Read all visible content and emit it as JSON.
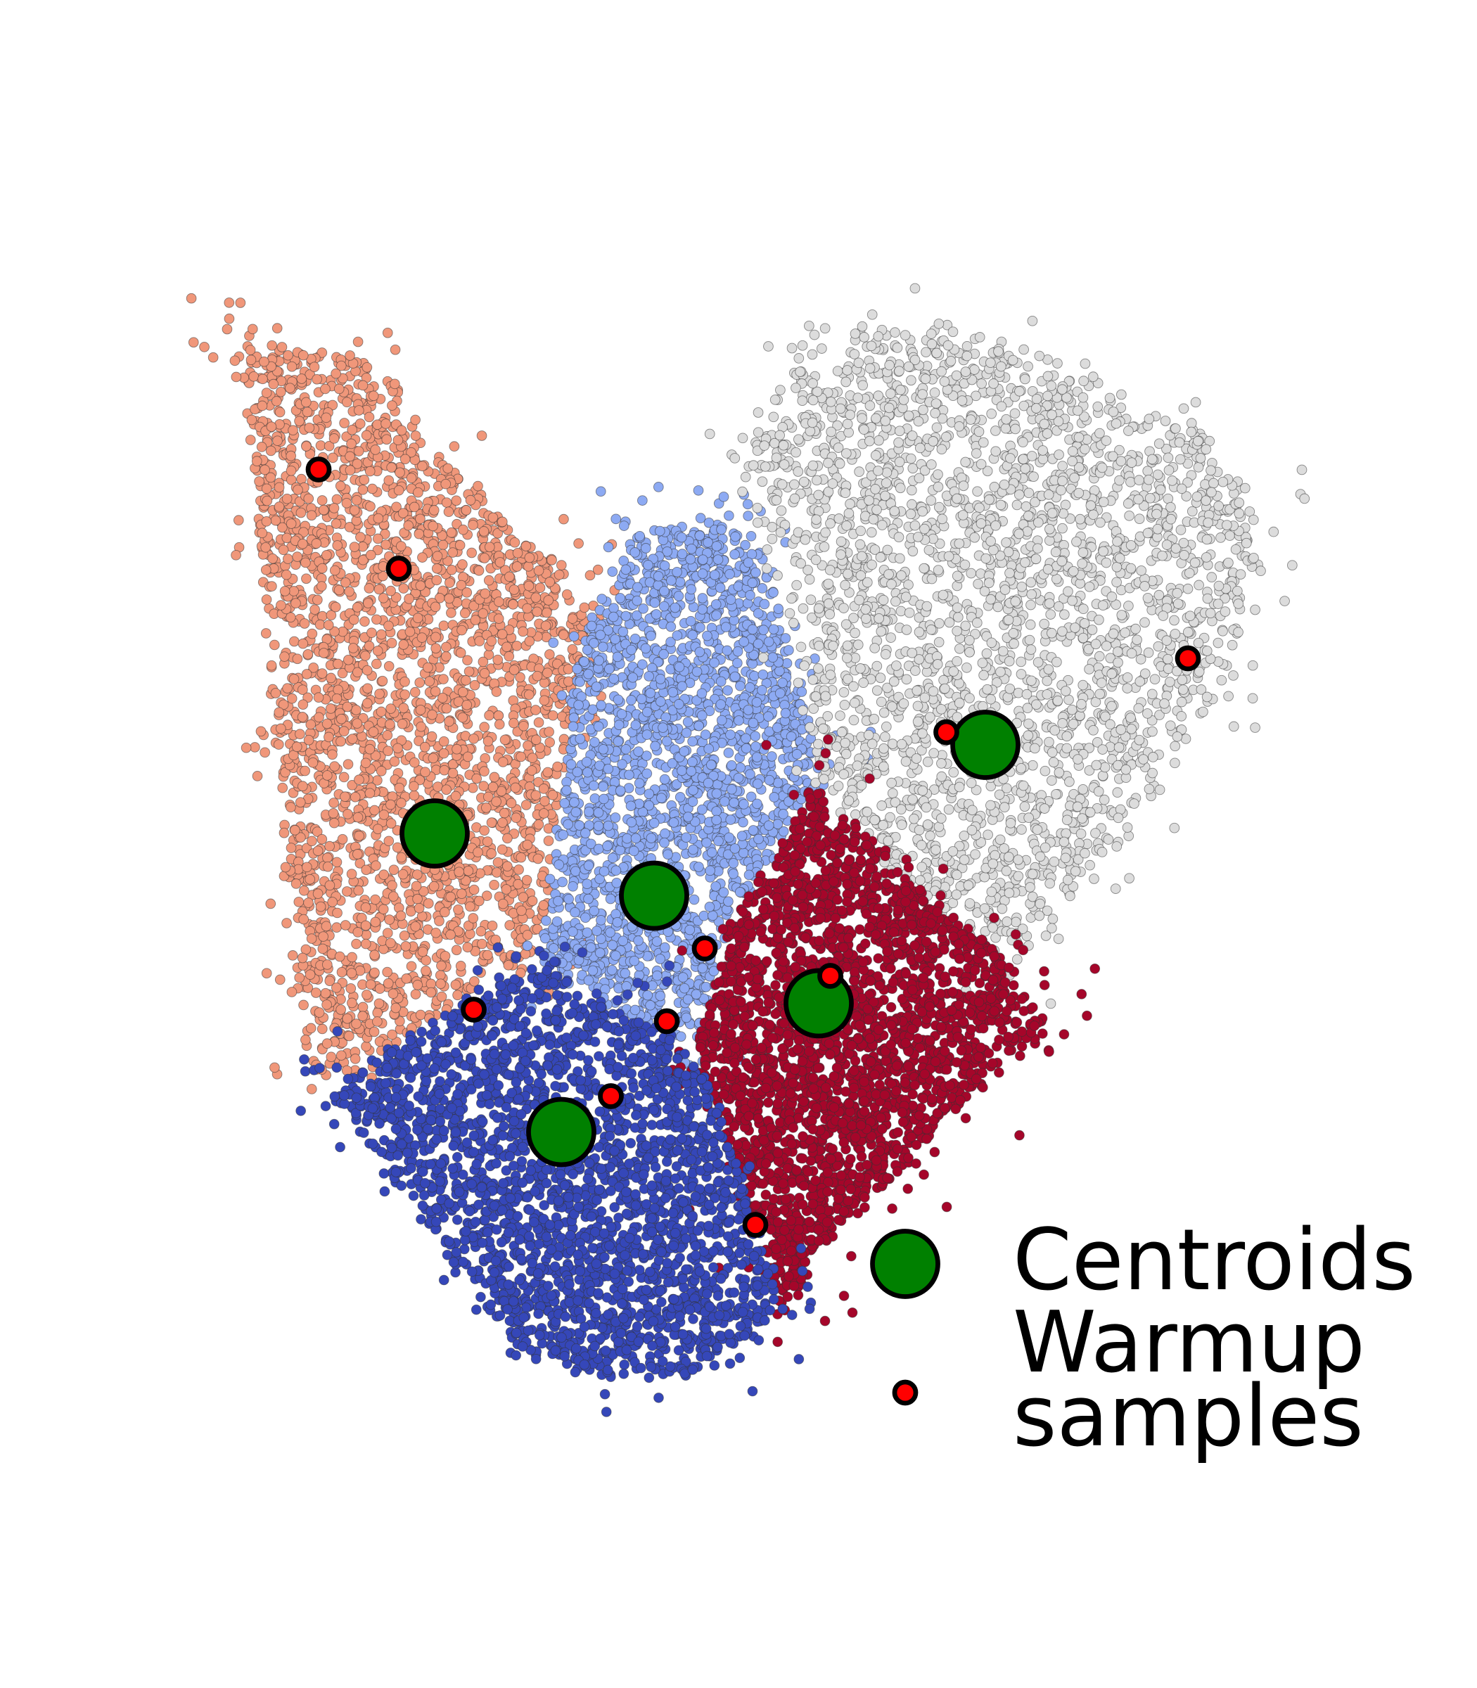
{
  "chart_data": {
    "type": "scatter",
    "title": "",
    "xlabel": "",
    "ylabel": "",
    "axes_visible": false,
    "grid": false,
    "legend_placement": "bottom-right",
    "legend": [
      {
        "label": "Centroids",
        "marker": "large-circle",
        "color": "#008000"
      },
      {
        "label_lines": [
          "Warmup",
          "samples"
        ],
        "marker": "small-circle",
        "color": "#ff0000"
      }
    ],
    "clusters": [
      {
        "name": "",
        "color": "#f0977a",
        "sample_count": 2600
      },
      {
        "name": "",
        "color": "#8daaf3",
        "sample_count": 2000
      },
      {
        "name": "",
        "color": "#dcdcdc",
        "sample_count": 2600
      },
      {
        "name": "",
        "color": "#a5062a",
        "sample_count": 2400
      },
      {
        "name": "",
        "color": "#3547b9",
        "sample_count": 2400
      }
    ],
    "centroids": {
      "color": "#008000",
      "points": [
        [
          412,
          790
        ],
        [
          620,
          849
        ],
        [
          934,
          706
        ],
        [
          776,
          951
        ],
        [
          532,
          1073
        ]
      ]
    },
    "warmup_samples": {
      "color": "#ff0000",
      "points": [
        [
          302,
          445
        ],
        [
          378,
          539
        ],
        [
          1126,
          624
        ],
        [
          897,
          694
        ],
        [
          668,
          899
        ],
        [
          632,
          968
        ],
        [
          787,
          925
        ],
        [
          449,
          957
        ],
        [
          579,
          1039
        ],
        [
          716,
          1161
        ]
      ]
    }
  }
}
